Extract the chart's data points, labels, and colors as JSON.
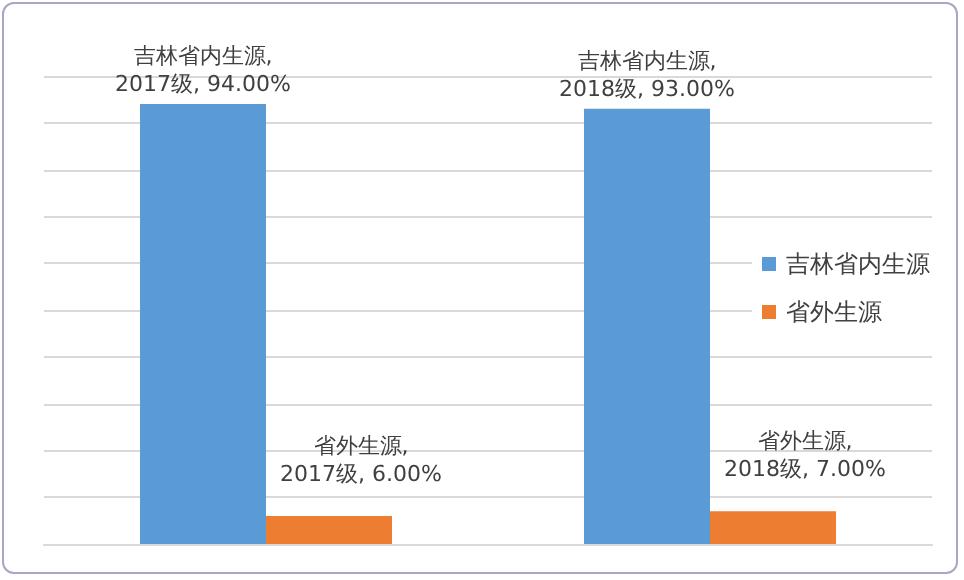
{
  "chart_data": {
    "type": "bar",
    "categories": [
      null,
      null
    ],
    "series": [
      {
        "name": "吉林省内生源",
        "color": "#5b9bd5",
        "values": [
          94,
          93
        ],
        "value_labels": [
          "吉林省内生源,\n2017级, 94.00%",
          "吉林省内生源,\n2018级, 93.00%"
        ]
      },
      {
        "name": "省外生源",
        "color": "#ed7d31",
        "values": [
          6,
          7
        ],
        "value_labels": [
          "省外生源,\n2017级, 6.00%",
          "省外生源,\n2018级, 7.00%"
        ]
      }
    ],
    "ylim": [
      0,
      100
    ],
    "yticks": [
      {
        "value": 0,
        "label": null
      },
      {
        "value": 10,
        "label": null
      },
      {
        "value": 20,
        "label": null
      },
      {
        "value": 30,
        "label": null
      },
      {
        "value": 40,
        "label": null
      },
      {
        "value": 50,
        "label": null
      },
      {
        "value": 60,
        "label": null
      },
      {
        "value": 70,
        "label": null
      },
      {
        "value": 80,
        "label": null
      },
      {
        "value": 90,
        "label": null
      },
      {
        "value": 100,
        "label": null
      }
    ],
    "grid": "y",
    "legend": "right"
  }
}
